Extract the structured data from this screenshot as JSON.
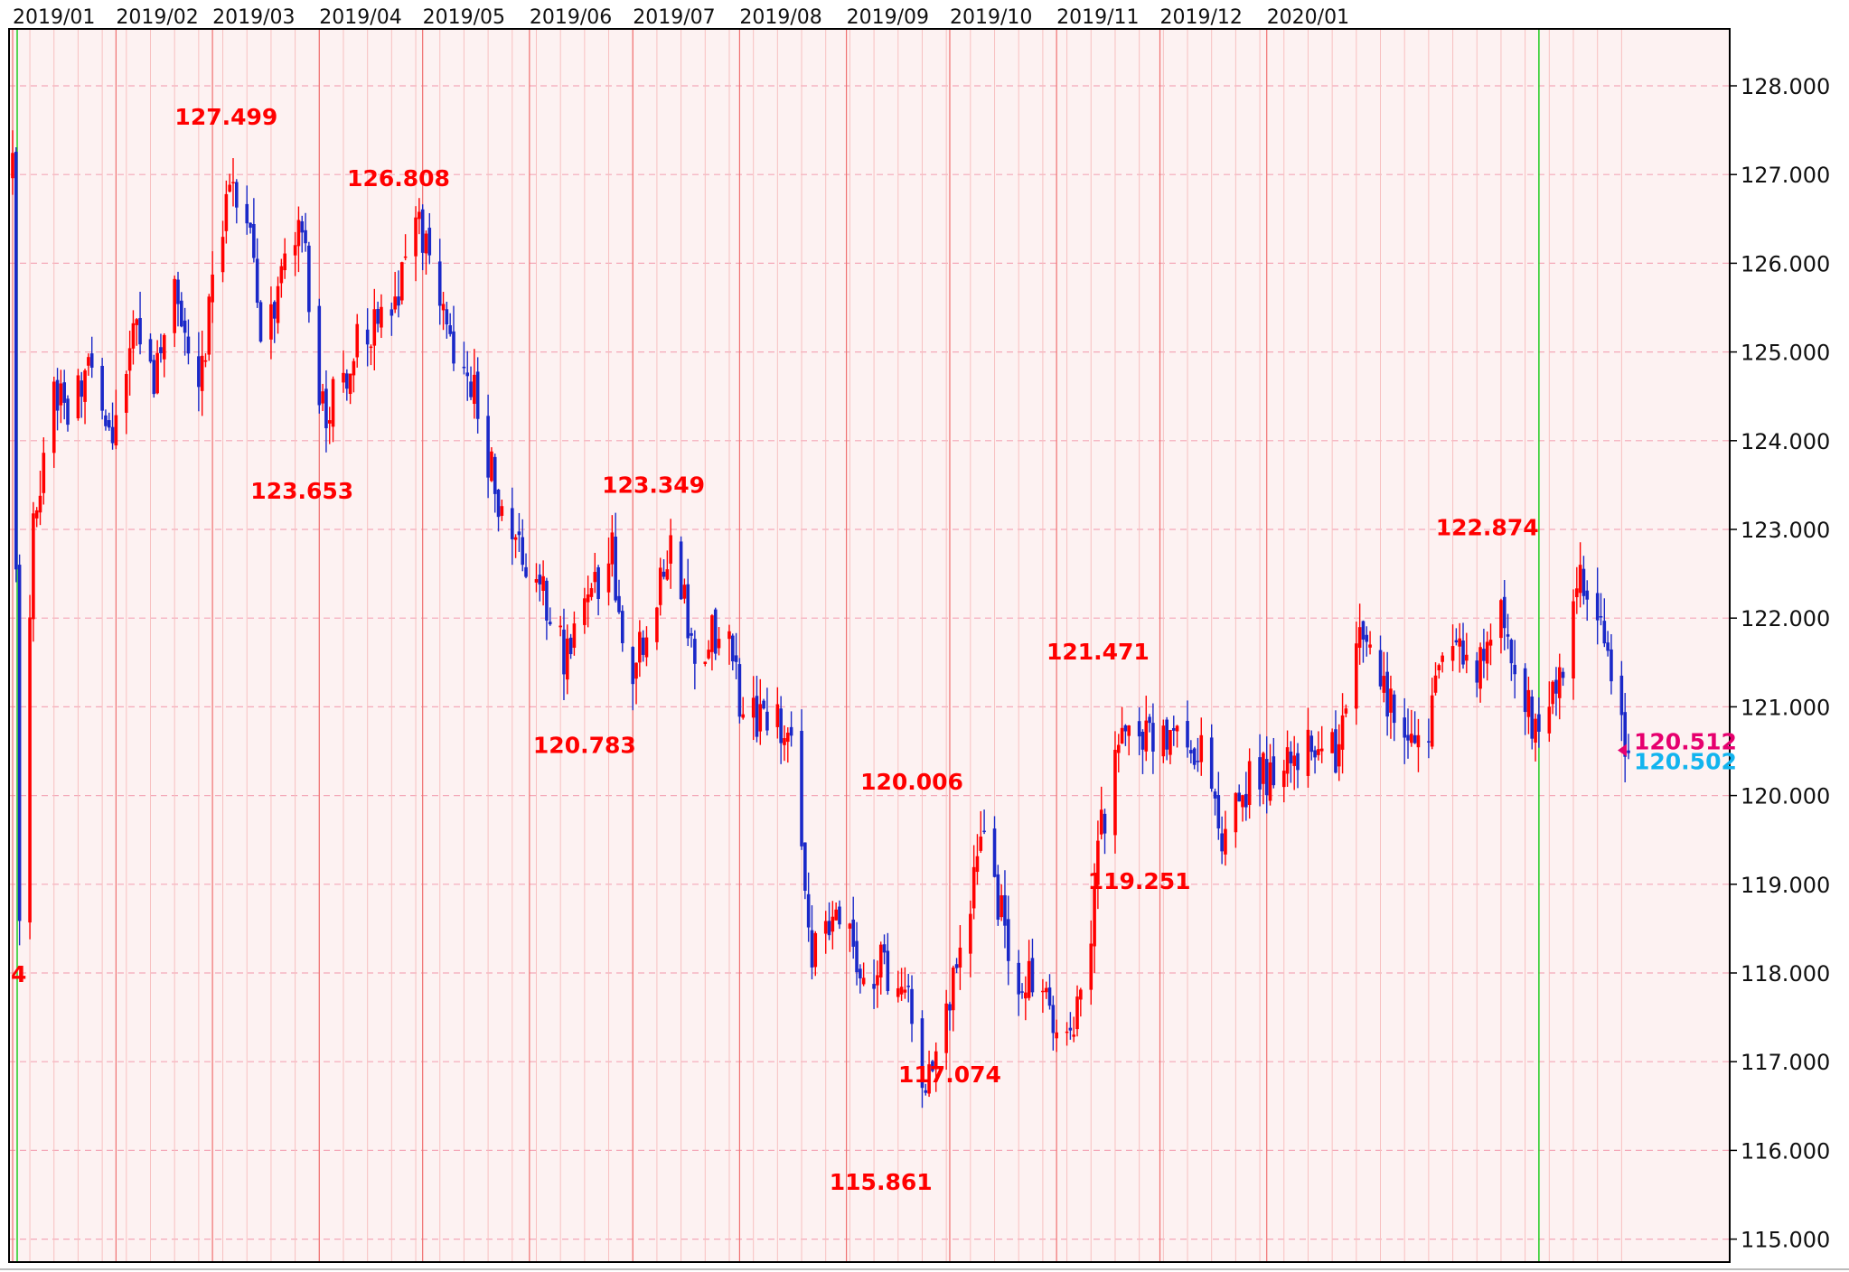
{
  "chart_data": {
    "type": "candlestick",
    "title": "",
    "xlabel": "",
    "ylabel": "",
    "ylim": [
      114.8,
      128.8
    ],
    "x_range": [
      "2019-01-02",
      "2020-01-27"
    ],
    "months": [
      {
        "label": "2019/01",
        "date": "2019-01-02"
      },
      {
        "label": "2019/02",
        "date": "2019-02-01"
      },
      {
        "label": "2019/03",
        "date": "2019-03-01"
      },
      {
        "label": "2019/04",
        "date": "2019-04-01"
      },
      {
        "label": "2019/05",
        "date": "2019-05-01"
      },
      {
        "label": "2019/06",
        "date": "2019-06-01"
      },
      {
        "label": "2019/07",
        "date": "2019-07-01"
      },
      {
        "label": "2019/08",
        "date": "2019-08-01"
      },
      {
        "label": "2019/09",
        "date": "2019-09-01"
      },
      {
        "label": "2019/10",
        "date": "2019-10-01"
      },
      {
        "label": "2019/11",
        "date": "2019-11-01"
      },
      {
        "label": "2019/12",
        "date": "2019-12-01"
      },
      {
        "label": "2020/01",
        "date": "2020-01-01"
      }
    ],
    "y_ticks": [
      {
        "value": 115,
        "label": "115.000"
      },
      {
        "value": 116,
        "label": "116.000"
      },
      {
        "value": 117,
        "label": "117.000"
      },
      {
        "value": 118,
        "label": "118.000"
      },
      {
        "value": 119,
        "label": "119.000"
      },
      {
        "value": 120,
        "label": "120.000"
      },
      {
        "value": 121,
        "label": "121.000"
      },
      {
        "value": 122,
        "label": "122.000"
      },
      {
        "value": 123,
        "label": "123.000"
      },
      {
        "value": 124,
        "label": "124.000"
      },
      {
        "value": 125,
        "label": "125.000"
      },
      {
        "value": 126,
        "label": "126.000"
      },
      {
        "value": 127,
        "label": "127.000"
      },
      {
        "value": 128,
        "label": "128.000"
      }
    ],
    "path_points": [
      {
        "date": "2019-01-02",
        "price": 127.0
      },
      {
        "date": "2019-01-04",
        "price": 118.4
      },
      {
        "date": "2019-01-08",
        "price": 123.0
      },
      {
        "date": "2019-01-14",
        "price": 124.6
      },
      {
        "date": "2019-01-18",
        "price": 124.3
      },
      {
        "date": "2019-01-24",
        "price": 124.9
      },
      {
        "date": "2019-01-30",
        "price": 124.0
      },
      {
        "date": "2019-02-06",
        "price": 125.2
      },
      {
        "date": "2019-02-12",
        "price": 124.6
      },
      {
        "date": "2019-02-19",
        "price": 125.8
      },
      {
        "date": "2019-02-24",
        "price": 124.4
      },
      {
        "date": "2019-03-01",
        "price": 125.6
      },
      {
        "date": "2019-03-07",
        "price": 127.0
      },
      {
        "date": "2019-03-13",
        "price": 126.2
      },
      {
        "date": "2019-03-15",
        "price": 124.9
      },
      {
        "date": "2019-03-20",
        "price": 125.8
      },
      {
        "date": "2019-03-27",
        "price": 126.4
      },
      {
        "date": "2019-04-02",
        "price": 124.3
      },
      {
        "date": "2019-04-08",
        "price": 124.7
      },
      {
        "date": "2019-04-15",
        "price": 125.3
      },
      {
        "date": "2019-04-22",
        "price": 125.2
      },
      {
        "date": "2019-04-29",
        "price": 126.6
      },
      {
        "date": "2019-05-05",
        "price": 125.9
      },
      {
        "date": "2019-05-10",
        "price": 124.8
      },
      {
        "date": "2019-05-16",
        "price": 124.5
      },
      {
        "date": "2019-05-22",
        "price": 123.5
      },
      {
        "date": "2019-05-29",
        "price": 122.8
      },
      {
        "date": "2019-06-05",
        "price": 122.3
      },
      {
        "date": "2019-06-12",
        "price": 121.5
      },
      {
        "date": "2019-06-18",
        "price": 122.2
      },
      {
        "date": "2019-06-25",
        "price": 122.7
      },
      {
        "date": "2019-06-30",
        "price": 121.4
      },
      {
        "date": "2019-07-05",
        "price": 121.8
      },
      {
        "date": "2019-07-12",
        "price": 122.7
      },
      {
        "date": "2019-07-20",
        "price": 121.6
      },
      {
        "date": "2019-07-27",
        "price": 121.9
      },
      {
        "date": "2019-08-03",
        "price": 120.8
      },
      {
        "date": "2019-08-10",
        "price": 120.9
      },
      {
        "date": "2019-08-16",
        "price": 120.5
      },
      {
        "date": "2019-08-22",
        "price": 118.2
      },
      {
        "date": "2019-08-29",
        "price": 118.8
      },
      {
        "date": "2019-09-05",
        "price": 118.0
      },
      {
        "date": "2019-09-12",
        "price": 118.1
      },
      {
        "date": "2019-09-19",
        "price": 117.6
      },
      {
        "date": "2019-09-24",
        "price": 116.5
      },
      {
        "date": "2019-09-30",
        "price": 117.7
      },
      {
        "date": "2019-10-05",
        "price": 118.4
      },
      {
        "date": "2019-10-10",
        "price": 119.6
      },
      {
        "date": "2019-10-15",
        "price": 118.8
      },
      {
        "date": "2019-10-21",
        "price": 118.0
      },
      {
        "date": "2019-10-27",
        "price": 117.8
      },
      {
        "date": "2019-11-03",
        "price": 117.2
      },
      {
        "date": "2019-11-08",
        "price": 117.6
      },
      {
        "date": "2019-11-14",
        "price": 119.6
      },
      {
        "date": "2019-11-19",
        "price": 120.6
      },
      {
        "date": "2019-11-25",
        "price": 120.8
      },
      {
        "date": "2019-12-02",
        "price": 120.6
      },
      {
        "date": "2019-12-08",
        "price": 120.7
      },
      {
        "date": "2019-12-13",
        "price": 120.5
      },
      {
        "date": "2019-12-19",
        "price": 119.5
      },
      {
        "date": "2019-12-26",
        "price": 120.1
      },
      {
        "date": "2020-01-03",
        "price": 120.3
      },
      {
        "date": "2020-01-09",
        "price": 120.5
      },
      {
        "date": "2020-01-15",
        "price": 120.7
      },
      {
        "date": "2020-01-21",
        "price": 120.4
      },
      {
        "date": "2020-01-27",
        "price": 121.8
      },
      {
        "date": "2020-02-04",
        "price": 121.2
      },
      {
        "date": "2020-02-10",
        "price": 120.6
      },
      {
        "date": "2020-02-16",
        "price": 120.6
      },
      {
        "date": "2020-02-22",
        "price": 121.8
      },
      {
        "date": "2020-03-01",
        "price": 121.3
      },
      {
        "date": "2020-03-08",
        "price": 122.2
      },
      {
        "date": "2020-03-14",
        "price": 121.5
      },
      {
        "date": "2020-03-20",
        "price": 120.6
      },
      {
        "date": "2020-03-26",
        "price": 121.4
      },
      {
        "date": "2020-04-01",
        "price": 122.5
      },
      {
        "date": "2020-04-08",
        "price": 121.8
      },
      {
        "date": "2020-04-15",
        "price": 120.5
      }
    ],
    "date_scale": {
      "start": "2019-01-02",
      "end": "2020-04-15"
    },
    "extremes": [
      {
        "label": "127.499",
        "date": "2019-03-05",
        "price": 127.499,
        "pos": "above"
      },
      {
        "label": "123.653",
        "date": "2019-03-27",
        "price": 123.653,
        "pos": "below"
      },
      {
        "label": "126.808",
        "date": "2019-04-24",
        "price": 126.808,
        "pos": "above"
      },
      {
        "label": "120.783",
        "date": "2019-06-17",
        "price": 120.783,
        "pos": "below"
      },
      {
        "label": "123.349",
        "date": "2019-07-07",
        "price": 123.349,
        "pos": "above"
      },
      {
        "label": "120.006",
        "date": "2019-09-20",
        "price": 120.006,
        "pos": "above"
      },
      {
        "label": "115.861",
        "date": "2019-09-11",
        "price": 115.861,
        "pos": "below"
      },
      {
        "label": "117.074",
        "date": "2019-10-01",
        "price": 117.074,
        "pos": "below"
      },
      {
        "label": "121.471",
        "date": "2019-11-13",
        "price": 121.471,
        "pos": "above"
      },
      {
        "label": "119.251",
        "date": "2019-11-25",
        "price": 119.251,
        "pos": "below"
      },
      {
        "label": "122.874",
        "date": "2020-03-05",
        "price": 122.874,
        "pos": "above"
      }
    ],
    "left_marker": {
      "label": "4",
      "price": 118.0
    },
    "current": {
      "ask": "120.512",
      "bid": "120.502",
      "price": 120.51
    },
    "colors": {
      "background": "#fdf2f2",
      "up": "#ff0000",
      "down": "#1a28c8",
      "grid": "#f4a8b8",
      "month_line": "#f07070",
      "week_line": "#f8c0c0",
      "session_line": "#22cc22",
      "ask": "#e6006e",
      "bid": "#12b4ee",
      "extreme_label": "#ff0000"
    }
  }
}
